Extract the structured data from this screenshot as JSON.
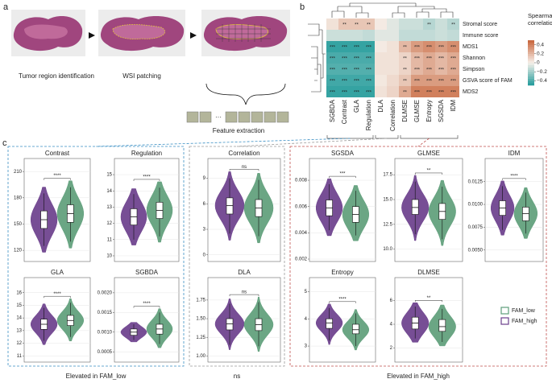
{
  "panel_labels": [
    "a",
    "b",
    "c"
  ],
  "workflow": {
    "steps": [
      "Tumor region identification",
      "WSI patching"
    ],
    "extraction": "Feature extraction",
    "ellipsis": "···"
  },
  "legend": {
    "series": [
      {
        "name": "FAM_high",
        "color": "#6b3f8c"
      },
      {
        "name": "FAM_low",
        "color": "#5e9e7a"
      }
    ]
  },
  "groups": [
    {
      "label": "Elevated in FAM_low",
      "color": "#3a8fc4"
    },
    {
      "label": "ns",
      "color": "#9a9a9a"
    },
    {
      "label": "Elevated in FAM_high",
      "color": "#c0504d"
    }
  ],
  "chart_data": [
    {
      "type": "heatmap",
      "rows": [
        "Stromal score",
        "Immune score",
        "MDS1",
        "Shannon",
        "Simpson",
        "GSVA score of FAM",
        "MDS2"
      ],
      "columns": [
        "SGBDA",
        "Contrast",
        "GLA",
        "Regulation",
        "DLA",
        "Correlation",
        "DLMSE",
        "GLMSE",
        "Entropy",
        "SGSDA",
        "IDM"
      ],
      "column_colors": [
        "#3a8fc4",
        "#3a8fc4",
        "#3a8fc4",
        "#3a8fc4",
        "#888888",
        "#888888",
        "#c0504d",
        "#c0504d",
        "#c0504d",
        "#c0504d",
        "#c0504d"
      ],
      "values": [
        [
          0.05,
          0.15,
          0.15,
          0.15,
          0.02,
          -0.05,
          -0.1,
          -0.1,
          -0.15,
          -0.1,
          -0.15
        ],
        [
          -0.1,
          -0.1,
          -0.1,
          -0.12,
          -0.05,
          -0.05,
          -0.12,
          -0.12,
          -0.12,
          -0.1,
          -0.12
        ],
        [
          -0.45,
          -0.45,
          -0.45,
          -0.45,
          0.02,
          0.05,
          0.2,
          0.3,
          0.35,
          0.3,
          0.35
        ],
        [
          -0.4,
          -0.4,
          -0.4,
          -0.4,
          0.05,
          0.05,
          0.1,
          0.2,
          0.25,
          0.2,
          0.25
        ],
        [
          -0.38,
          -0.38,
          -0.38,
          -0.38,
          0.05,
          0.05,
          0.1,
          0.2,
          0.25,
          0.2,
          0.25
        ],
        [
          -0.42,
          -0.42,
          -0.42,
          -0.42,
          0.03,
          0.08,
          0.15,
          0.3,
          0.3,
          0.3,
          0.3
        ],
        [
          -0.45,
          -0.45,
          -0.45,
          -0.45,
          0.05,
          0.1,
          0.25,
          0.4,
          0.4,
          0.4,
          0.4
        ]
      ],
      "stars": [
        [
          null,
          "**",
          "**",
          "**",
          null,
          null,
          null,
          null,
          "**",
          null,
          "**"
        ],
        [
          null,
          null,
          null,
          null,
          null,
          null,
          null,
          null,
          null,
          null,
          null
        ],
        [
          "***",
          "***",
          "***",
          "***",
          null,
          null,
          "**",
          "***",
          "***",
          "***",
          "***"
        ],
        [
          "***",
          "***",
          "***",
          "***",
          null,
          null,
          "**",
          "***",
          "***",
          "***",
          "***"
        ],
        [
          "***",
          "***",
          "***",
          "***",
          null,
          null,
          "**",
          "***",
          "***",
          "***",
          "***"
        ],
        [
          "***",
          "***",
          "***",
          "***",
          null,
          null,
          "**",
          "***",
          "***",
          "***",
          "***"
        ],
        [
          "***",
          "***",
          "***",
          "***",
          null,
          null,
          "**",
          "***",
          "***",
          "***",
          "***"
        ]
      ],
      "colorbar": {
        "title_lines": [
          "Spearman",
          "correlation"
        ],
        "lim": [
          -0.5,
          0.5
        ],
        "ticks": [
          0.4,
          0.2,
          0,
          {
            "value": -0.2,
            "label": "−0.2"
          },
          {
            "value": -0.4,
            "label": "−0.4"
          }
        ]
      }
    },
    {
      "type": "violin",
      "title": "Contrast",
      "title_color": "#3a8fc4",
      "ylim": [
        110,
        212
      ],
      "yticks": [
        120,
        150,
        180,
        210
      ],
      "significance": "****",
      "groups": [
        {
          "q1": 145,
          "median": 155,
          "q3": 165,
          "min": 125,
          "max": 185
        },
        {
          "q1": 152,
          "median": 162,
          "q3": 172,
          "min": 130,
          "max": 192
        }
      ]
    },
    {
      "type": "violin",
      "title": "Regulation",
      "title_color": "#3a8fc4",
      "ylim": [
        9.8,
        15.3
      ],
      "yticks": [
        10,
        11,
        12,
        13,
        14,
        15
      ],
      "significance": "****",
      "groups": [
        {
          "q1": 11.9,
          "median": 12.4,
          "q3": 12.9,
          "min": 11,
          "max": 13.8
        },
        {
          "q1": 12.3,
          "median": 12.8,
          "q3": 13.3,
          "min": 11.2,
          "max": 14.2
        }
      ]
    },
    {
      "type": "violin",
      "title": "GLA",
      "title_color": "#3a8fc4",
      "ylim": [
        10.7,
        16.3
      ],
      "yticks": [
        11,
        12,
        13,
        14,
        15,
        16
      ],
      "significance": "****",
      "groups": [
        {
          "q1": 13.1,
          "median": 13.5,
          "q3": 13.9,
          "min": 12.2,
          "max": 14.8
        },
        {
          "q1": 13.4,
          "median": 13.8,
          "q3": 14.2,
          "min": 12.5,
          "max": 15.2
        }
      ]
    },
    {
      "type": "violin",
      "title": "SGBDA",
      "title_color": "#3a8fc4",
      "ylim": [
        0.0003,
        0.0021
      ],
      "yticks": [
        {
          "value": 0.0005,
          "label": "0.0005"
        },
        {
          "value": 0.001,
          "label": "0.0010"
        },
        {
          "value": 0.0015,
          "label": "0.0015"
        },
        {
          "value": 0.002,
          "label": "0.0020"
        }
      ],
      "significance": "****",
      "groups": [
        {
          "q1": 0.00092,
          "median": 0.001,
          "q3": 0.00108,
          "min": 0.0008,
          "max": 0.0012
        },
        {
          "q1": 0.00095,
          "median": 0.00108,
          "q3": 0.0012,
          "min": 0.0007,
          "max": 0.0015
        }
      ]
    },
    {
      "type": "violin",
      "title": "Correlation",
      "title_color": "#888888",
      "ylim": [
        -0.5,
        10
      ],
      "yticks": [
        0,
        3,
        6,
        9
      ],
      "significance": "ns",
      "groups": [
        {
          "q1": 4.8,
          "median": 5.8,
          "q3": 6.7,
          "min": 2.5,
          "max": 9
        },
        {
          "q1": 4.5,
          "median": 5.5,
          "q3": 6.5,
          "min": 2.2,
          "max": 8.8
        }
      ]
    },
    {
      "type": "violin",
      "title": "DLA",
      "title_color": "#888888",
      "ylim": [
        0.95,
        1.9
      ],
      "yticks": [
        {
          "value": 1,
          "label": "1.00"
        },
        1.25,
        {
          "value": 1.5,
          "label": "1.50"
        },
        1.75
      ],
      "significance": "ns",
      "groups": [
        {
          "q1": 1.35,
          "median": 1.43,
          "q3": 1.5,
          "min": 1.15,
          "max": 1.7
        },
        {
          "q1": 1.34,
          "median": 1.42,
          "q3": 1.5,
          "min": 1.13,
          "max": 1.72
        }
      ]
    },
    {
      "type": "violin",
      "title": "SGSDA",
      "title_color": "#c0504d",
      "ylim": [
        0.002,
        0.0088
      ],
      "yticks": [
        0.002,
        0.004,
        0.006,
        0.008
      ],
      "significance": "***",
      "groups": [
        {
          "q1": 0.0053,
          "median": 0.0059,
          "q3": 0.0065,
          "min": 0.0042,
          "max": 0.0077
        },
        {
          "q1": 0.0048,
          "median": 0.0054,
          "q3": 0.006,
          "min": 0.0038,
          "max": 0.0072
        }
      ]
    },
    {
      "type": "violin",
      "title": "GLMSE",
      "title_color": "#c0504d",
      "ylim": [
        9,
        18
      ],
      "yticks": [
        {
          "value": 10,
          "label": "10.0"
        },
        12.5,
        {
          "value": 15,
          "label": "15.0"
        },
        17.5
      ],
      "significance": "**",
      "groups": [
        {
          "q1": 13.5,
          "median": 14.2,
          "q3": 15,
          "min": 11.5,
          "max": 16.8
        },
        {
          "q1": 13,
          "median": 13.8,
          "q3": 14.6,
          "min": 11,
          "max": 16.3
        }
      ]
    },
    {
      "type": "violin",
      "title": "IDM",
      "title_color": "#c0504d",
      "ylim": [
        0.004,
        0.0138
      ],
      "yticks": [
        {
          "value": 0.005,
          "label": "0.0050"
        },
        0.0075,
        {
          "value": 0.01,
          "label": "0.0100"
        },
        0.0125
      ],
      "significance": "****",
      "groups": [
        {
          "q1": 0.0088,
          "median": 0.0096,
          "q3": 0.0104,
          "min": 0.0072,
          "max": 0.012
        },
        {
          "q1": 0.0082,
          "median": 0.009,
          "q3": 0.0097,
          "min": 0.0068,
          "max": 0.0113
        }
      ]
    },
    {
      "type": "violin",
      "title": "Entropy",
      "title_color": "#c0504d",
      "ylim": [
        2.5,
        5.1
      ],
      "yticks": [
        3,
        4,
        5
      ],
      "significance": "****",
      "groups": [
        {
          "q1": 3.65,
          "median": 3.85,
          "q3": 4,
          "min": 3.2,
          "max": 4.4
        },
        {
          "q1": 3.45,
          "median": 3.6,
          "q3": 3.8,
          "min": 3,
          "max": 4.2
        }
      ]
    },
    {
      "type": "violin",
      "title": "DLMSE",
      "title_color": "#c0504d",
      "ylim": [
        1,
        7
      ],
      "yticks": [
        2,
        4,
        6
      ],
      "significance": "**",
      "groups": [
        {
          "q1": 3.6,
          "median": 4.1,
          "q3": 4.6,
          "min": 2.8,
          "max": 5.5
        },
        {
          "q1": 3.4,
          "median": 3.8,
          "q3": 4.4,
          "min": 2.5,
          "max": 5.3
        }
      ]
    }
  ]
}
